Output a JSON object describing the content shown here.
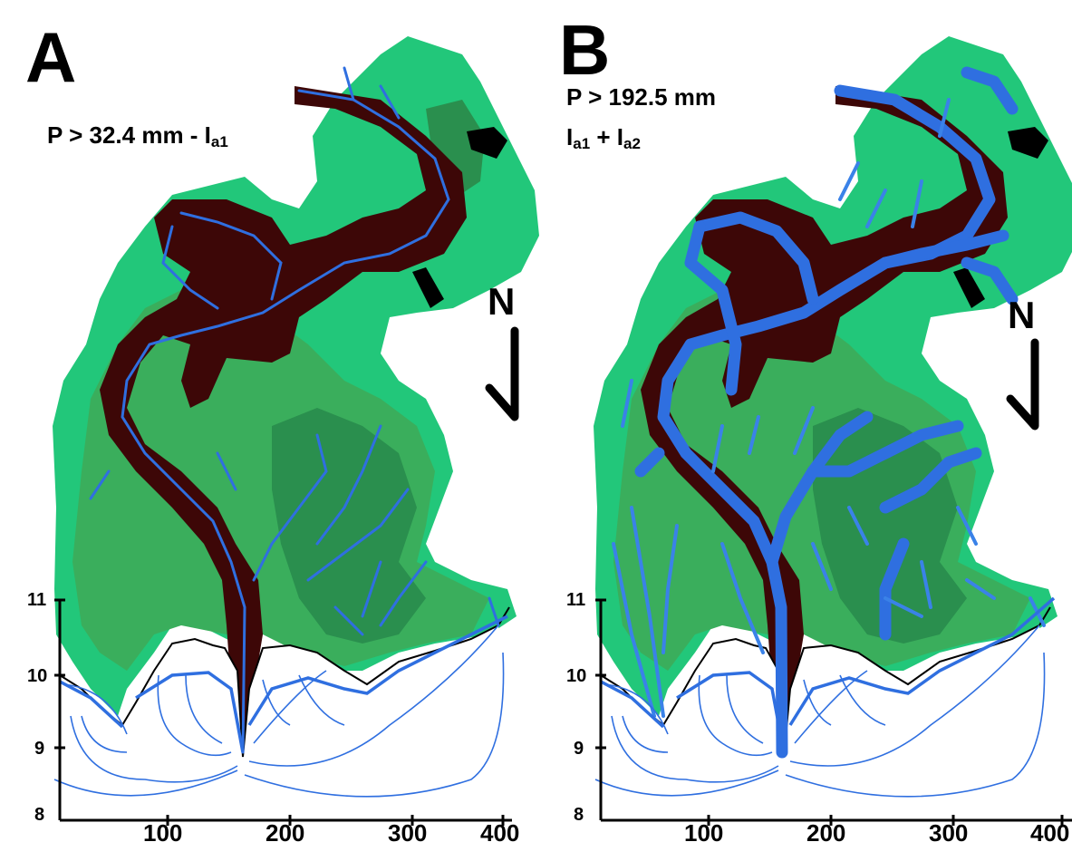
{
  "panels": [
    {
      "letter": "A",
      "condition": {
        "prefix": "P > 32.4 mm - I",
        "sub": "a1"
      },
      "north_label": "N",
      "x_axis": {
        "ticks": [
          "100",
          "200",
          "300",
          "400"
        ]
      },
      "y_axis": {
        "ticks": [
          "11",
          "10",
          "9",
          "8"
        ]
      }
    },
    {
      "letter": "B",
      "condition": {
        "line1": "P > 192.5 mm",
        "line2_a": "I",
        "line2_a_sub": "a1",
        "line2_mid": " + I",
        "line2_b_sub": "a2"
      },
      "north_label": "N",
      "x_axis": {
        "ticks": [
          "100",
          "200",
          "300",
          "400"
        ]
      },
      "y_axis": {
        "ticks": [
          "11",
          "10",
          "9",
          "8"
        ]
      }
    }
  ],
  "colors": {
    "basin_light": "#22c77a",
    "basin_mid": "#3aae5c",
    "basin_dark": "#2a8f4e",
    "channel": "#3d0707",
    "flow": "#2f6fe0",
    "flow_light": "#3a82e8",
    "outline": "#000000"
  }
}
